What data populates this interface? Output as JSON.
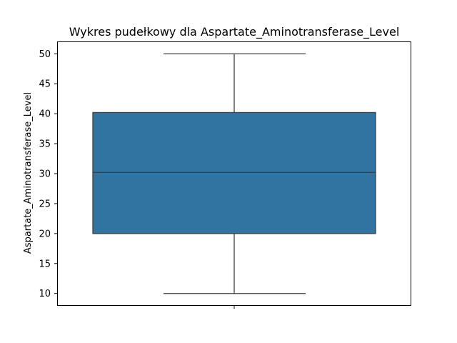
{
  "chart_data": {
    "type": "boxplot",
    "title": "Wykres pudełkowy dla Aspartate_Aminotransferase_Level",
    "xlabel": "",
    "ylabel": "Aspartate_Aminotransferase_Level",
    "ylim": [
      8,
      52
    ],
    "yticks": [
      "10",
      "15",
      "20",
      "25",
      "30",
      "35",
      "40",
      "45",
      "50"
    ],
    "grid": false,
    "box": {
      "min": 10,
      "q1": 20,
      "median": 30.2,
      "q3": 40.2,
      "max": 50
    },
    "colors": {
      "box_fill": "#3274a1",
      "line": "#3f3f3f",
      "axes": "#000000"
    }
  }
}
